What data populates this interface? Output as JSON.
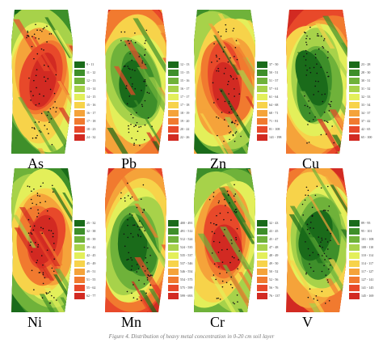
{
  "caption": "Figure 4. Distribution of heavy metal concentration in 0-20 cm soil layer",
  "panels": [
    {
      "element": "As",
      "legend": [
        "9 - 11",
        "11 - 12",
        "12 - 13",
        "13 - 14",
        "14 - 15",
        "15 - 16",
        "16 - 17",
        "17 - 18",
        "18 - 23",
        "24 - 32"
      ],
      "colors": [
        "#1a6b1a",
        "#3e8f2a",
        "#6fb23a",
        "#a7d24a",
        "#e3ef5a",
        "#f7d34a",
        "#f5a33a",
        "#f17a2f",
        "#e8492a",
        "#d22a22"
      ]
    },
    {
      "element": "Pb",
      "legend": [
        "12 - 13",
        "13 - 15",
        "15 - 16",
        "16 - 17",
        "17 - 17",
        "17 - 18",
        "18 - 19",
        "19 - 20",
        "20 - 22",
        "22 - 26"
      ],
      "colors": [
        "#1a6b1a",
        "#3e8f2a",
        "#6fb23a",
        "#a7d24a",
        "#e3ef5a",
        "#f7d34a",
        "#f5a33a",
        "#f17a2f",
        "#e8492a",
        "#d22a22"
      ]
    },
    {
      "element": "Zn",
      "legend": [
        "37 - 50",
        "50 - 51",
        "51 - 57",
        "57 - 61",
        "61 - 64",
        "64 - 68",
        "68 - 71",
        "71 - 81",
        "81 - 108",
        "141 - 198"
      ],
      "colors": [
        "#1a6b1a",
        "#3e8f2a",
        "#6fb23a",
        "#a7d24a",
        "#e3ef5a",
        "#f7d34a",
        "#f5a33a",
        "#f17a2f",
        "#e8492a",
        "#d22a22"
      ]
    },
    {
      "element": "Cu",
      "legend": [
        "23 - 28",
        "28 - 30",
        "30 - 31",
        "31 - 32",
        "32 - 33",
        "33 - 34",
        "34 - 37",
        "37 - 42",
        "42 - 65",
        "65 - 100"
      ],
      "colors": [
        "#1a6b1a",
        "#3e8f2a",
        "#6fb23a",
        "#a7d24a",
        "#e3ef5a",
        "#f7d34a",
        "#f5a33a",
        "#f17a2f",
        "#e8492a",
        "#d22a22"
      ]
    },
    {
      "element": "Ni",
      "legend": [
        "25 - 32",
        "32 - 38",
        "38 - 39",
        "39 - 42",
        "42 - 45",
        "45 - 49",
        "49 - 51",
        "51 - 55",
        "55 - 62",
        "62 - 77"
      ],
      "colors": [
        "#1a6b1a",
        "#3e8f2a",
        "#6fb23a",
        "#a7d24a",
        "#e3ef5a",
        "#f7d34a",
        "#f5a33a",
        "#f17a2f",
        "#e8492a",
        "#d22a22"
      ]
    },
    {
      "element": "Mn",
      "legend": [
        "400 - 491",
        "491 - 512",
        "512 - 524",
        "524 - 535",
        "535 - 537",
        "537 - 546",
        "546 - 554",
        "554 - 575",
        "575 - 599",
        "599 - 693"
      ],
      "colors": [
        "#1a6b1a",
        "#3e8f2a",
        "#6fb23a",
        "#a7d24a",
        "#e3ef5a",
        "#f7d34a",
        "#f5a33a",
        "#f17a2f",
        "#e8492a",
        "#d22a22"
      ]
    },
    {
      "element": "Cr",
      "legend": [
        "32 - 43",
        "43 - 45",
        "45 - 47",
        "47 - 48",
        "48 - 49",
        "49 - 50",
        "50 - 52",
        "52 - 56",
        "56 - 76",
        "76 - 137"
      ],
      "colors": [
        "#1a6b1a",
        "#3e8f2a",
        "#6fb23a",
        "#a7d24a",
        "#e3ef5a",
        "#f7d34a",
        "#f5a33a",
        "#f17a2f",
        "#e8492a",
        "#d22a22"
      ]
    },
    {
      "element": "V",
      "legend": [
        "89 - 95",
        "95 - 101",
        "101 - 108",
        "108 - 110",
        "110 - 114",
        "114 - 117",
        "117 - 127",
        "127 - 141",
        "141 - 145",
        "145 - 169"
      ],
      "colors": [
        "#1a6b1a",
        "#3e8f2a",
        "#6fb23a",
        "#a7d24a",
        "#e3ef5a",
        "#f7d34a",
        "#f5a33a",
        "#f17a2f",
        "#e8492a",
        "#d22a22"
      ]
    }
  ]
}
